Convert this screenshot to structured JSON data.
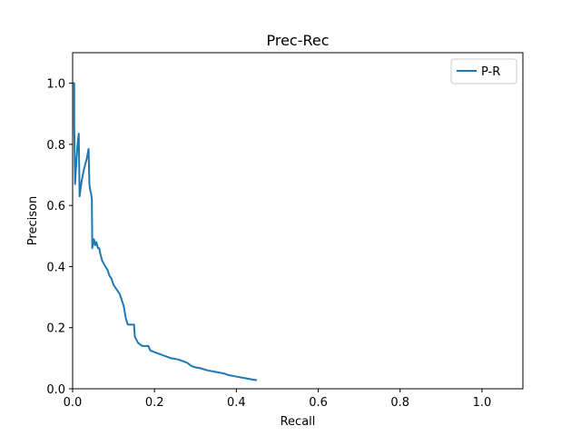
{
  "chart_data": {
    "type": "line",
    "title": "Prec-Rec",
    "xlabel": "Recall",
    "ylabel": "Precison",
    "xlim": [
      0.0,
      1.1
    ],
    "ylim": [
      0.0,
      1.1
    ],
    "xticks": [
      0.0,
      0.2,
      0.4,
      0.6,
      0.8,
      1.0
    ],
    "xtick_labels": [
      "0.0",
      "0.2",
      "0.4",
      "0.6",
      "0.8",
      "1.0"
    ],
    "yticks": [
      0.0,
      0.2,
      0.4,
      0.6,
      0.8,
      1.0
    ],
    "ytick_labels": [
      "0.0",
      "0.2",
      "0.4",
      "0.6",
      "0.8",
      "1.0"
    ],
    "grid": false,
    "legend_position": "top-right",
    "series": [
      {
        "name": "P-R",
        "color": "#1f77b4",
        "points": [
          [
            0.0,
            1.0
          ],
          [
            0.004,
            1.0
          ],
          [
            0.004,
            0.86
          ],
          [
            0.006,
            0.67
          ],
          [
            0.009,
            0.74
          ],
          [
            0.012,
            0.8
          ],
          [
            0.015,
            0.835
          ],
          [
            0.017,
            0.63
          ],
          [
            0.022,
            0.68
          ],
          [
            0.028,
            0.72
          ],
          [
            0.034,
            0.75
          ],
          [
            0.039,
            0.785
          ],
          [
            0.041,
            0.67
          ],
          [
            0.043,
            0.65
          ],
          [
            0.045,
            0.64
          ],
          [
            0.047,
            0.62
          ],
          [
            0.048,
            0.46
          ],
          [
            0.052,
            0.49
          ],
          [
            0.055,
            0.47
          ],
          [
            0.058,
            0.48
          ],
          [
            0.062,
            0.46
          ],
          [
            0.065,
            0.46
          ],
          [
            0.068,
            0.44
          ],
          [
            0.072,
            0.42
          ],
          [
            0.076,
            0.41
          ],
          [
            0.08,
            0.4
          ],
          [
            0.085,
            0.39
          ],
          [
            0.09,
            0.37
          ],
          [
            0.095,
            0.36
          ],
          [
            0.1,
            0.34
          ],
          [
            0.105,
            0.33
          ],
          [
            0.11,
            0.32
          ],
          [
            0.115,
            0.31
          ],
          [
            0.12,
            0.29
          ],
          [
            0.125,
            0.27
          ],
          [
            0.13,
            0.23
          ],
          [
            0.135,
            0.21
          ],
          [
            0.14,
            0.21
          ],
          [
            0.15,
            0.21
          ],
          [
            0.152,
            0.17
          ],
          [
            0.156,
            0.16
          ],
          [
            0.16,
            0.15
          ],
          [
            0.165,
            0.145
          ],
          [
            0.17,
            0.14
          ],
          [
            0.185,
            0.14
          ],
          [
            0.19,
            0.125
          ],
          [
            0.2,
            0.12
          ],
          [
            0.21,
            0.115
          ],
          [
            0.22,
            0.11
          ],
          [
            0.23,
            0.105
          ],
          [
            0.24,
            0.1
          ],
          [
            0.25,
            0.098
          ],
          [
            0.26,
            0.095
          ],
          [
            0.27,
            0.09
          ],
          [
            0.28,
            0.085
          ],
          [
            0.29,
            0.075
          ],
          [
            0.3,
            0.07
          ],
          [
            0.31,
            0.068
          ],
          [
            0.33,
            0.06
          ],
          [
            0.35,
            0.055
          ],
          [
            0.37,
            0.05
          ],
          [
            0.38,
            0.045
          ],
          [
            0.4,
            0.04
          ],
          [
            0.42,
            0.035
          ],
          [
            0.44,
            0.03
          ],
          [
            0.45,
            0.028
          ]
        ]
      }
    ]
  }
}
